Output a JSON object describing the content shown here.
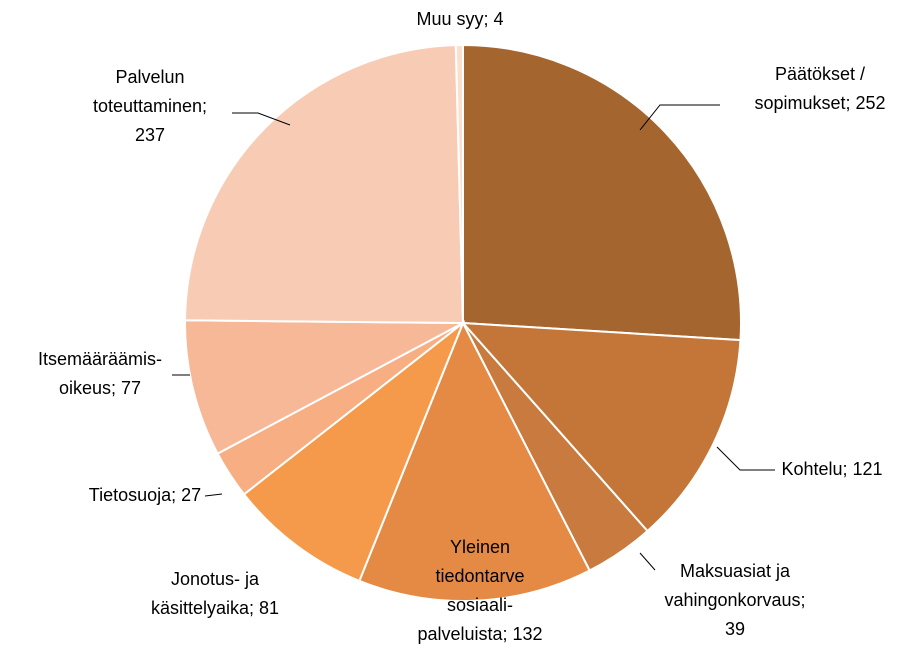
{
  "chart_data": {
    "type": "pie",
    "categories": [
      "Päätökset / sopimukset;",
      "Kohtelu;",
      "Maksuasiat ja vahingonkorvaus;",
      "Yleinen tiedontarve sosiaali-palveluista;",
      "Jonotus- ja käsittelyaika;",
      "Tietosuoja;",
      "Itsemääräämis-oikeus;",
      "Palvelun toteuttaminen;",
      "Muu syy;"
    ],
    "values": [
      252,
      121,
      39,
      132,
      81,
      27,
      77,
      237,
      4
    ],
    "colors": [
      "#a5652f",
      "#c47638",
      "#c97a3e",
      "#e58a45",
      "#f59a4a",
      "#f6ae82",
      "#f7b898",
      "#f8cbb4",
      "#fbe0d0"
    ]
  }
}
